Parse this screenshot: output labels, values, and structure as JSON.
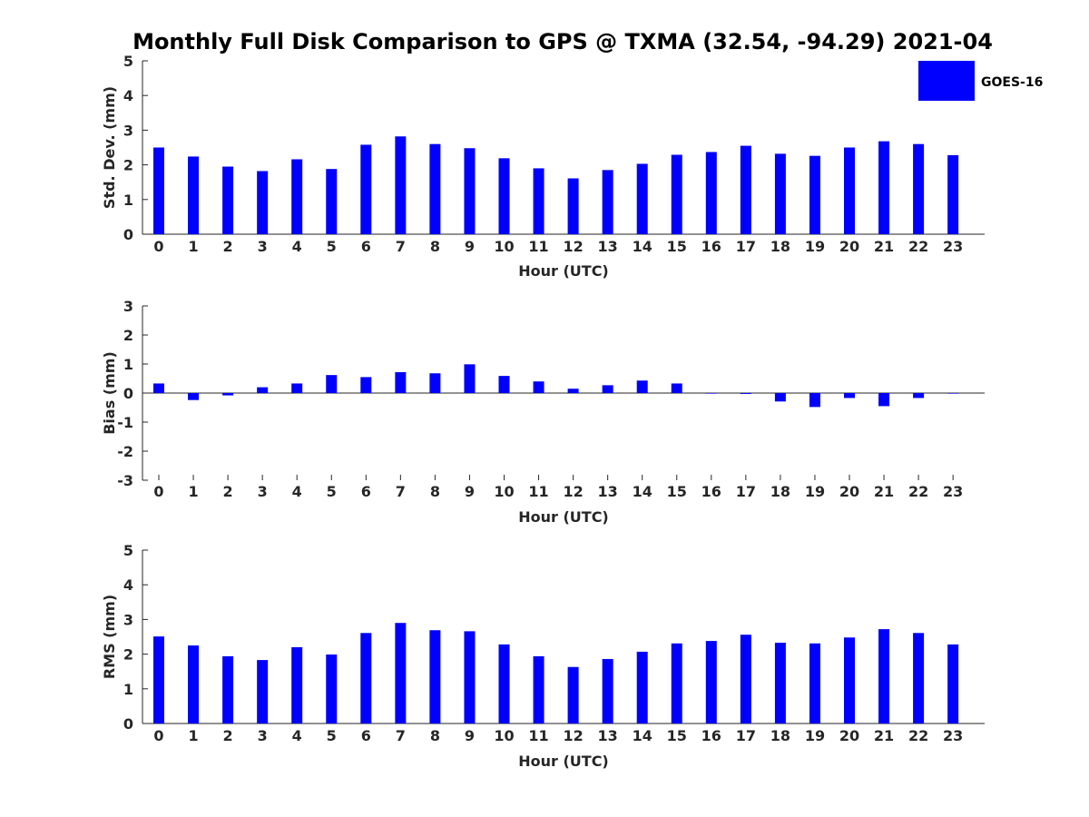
{
  "chart_data": {
    "type": "bar",
    "title": "Monthly Full Disk Comparison to GPS @ TXMA (32.54, -94.29) 2021-04",
    "legend": {
      "label": "GOES-16",
      "placement": "top-right",
      "color": "#0000ff"
    },
    "categories": [
      "0",
      "1",
      "2",
      "3",
      "4",
      "5",
      "6",
      "7",
      "8",
      "9",
      "10",
      "11",
      "12",
      "13",
      "14",
      "15",
      "16",
      "17",
      "18",
      "19",
      "20",
      "21",
      "22",
      "23"
    ],
    "bar_color": "#0000ff",
    "panels": [
      {
        "ylabel": "Std. Dev. (mm)",
        "xlabel": "Hour (UTC)",
        "ylim": [
          0,
          5
        ],
        "yticks": [
          "0",
          "1",
          "2",
          "3",
          "4",
          "5"
        ],
        "series": [
          {
            "name": "GOES-16",
            "values": [
              2.5,
              2.24,
              1.95,
              1.82,
              2.16,
              1.88,
              2.58,
              2.82,
              2.6,
              2.48,
              2.19,
              1.9,
              1.61,
              1.85,
              2.03,
              2.29,
              2.37,
              2.55,
              2.32,
              2.26,
              2.5,
              2.68,
              2.6,
              2.28
            ]
          }
        ]
      },
      {
        "ylabel": "Bias (mm)",
        "xlabel": "Hour (UTC)",
        "ylim": [
          -3,
          3
        ],
        "yticks": [
          "-3",
          "-2",
          "-1",
          "0",
          "1",
          "2",
          "3"
        ],
        "series": [
          {
            "name": "GOES-16",
            "values": [
              0.33,
              -0.24,
              -0.08,
              0.2,
              0.33,
              0.62,
              0.55,
              0.72,
              0.68,
              0.99,
              0.59,
              0.4,
              0.15,
              0.27,
              0.43,
              0.33,
              -0.02,
              -0.03,
              -0.29,
              -0.48,
              -0.17,
              -0.45,
              -0.17,
              -0.02
            ]
          }
        ]
      },
      {
        "ylabel": "RMS (mm)",
        "xlabel": "Hour (UTC)",
        "ylim": [
          0,
          5
        ],
        "yticks": [
          "0",
          "1",
          "2",
          "3",
          "4",
          "5"
        ],
        "series": [
          {
            "name": "GOES-16",
            "values": [
              2.51,
              2.25,
              1.94,
              1.83,
              2.2,
              1.99,
              2.61,
              2.9,
              2.69,
              2.66,
              2.28,
              1.94,
              1.63,
              1.86,
              2.07,
              2.31,
              2.38,
              2.56,
              2.33,
              2.31,
              2.48,
              2.72,
              2.61,
              2.28
            ]
          }
        ]
      }
    ]
  }
}
